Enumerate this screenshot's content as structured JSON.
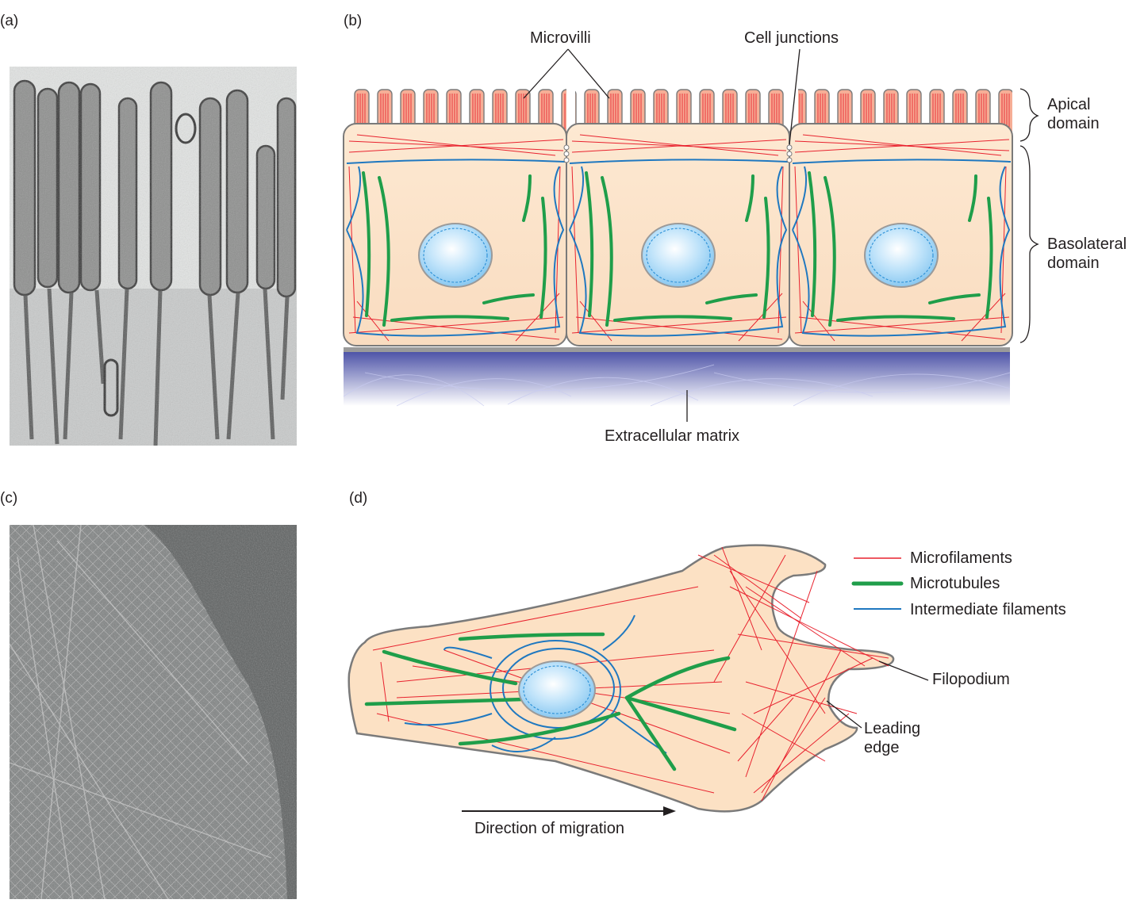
{
  "panels": {
    "a": {
      "letter": "(a)"
    },
    "b": {
      "letter": "(b)",
      "labels": {
        "microvilli": "Microvilli",
        "cell_junctions": "Cell junctions",
        "apical_line1": "Apical",
        "apical_line2": "domain",
        "basolateral_line1": "Basolateral",
        "basolateral_line2": "domain",
        "extracellular_matrix": "Extracellular matrix"
      }
    },
    "c": {
      "letter": "(c)"
    },
    "d": {
      "letter": "(d)",
      "legend": [
        {
          "label": "Microfilaments",
          "color": "#e8222e"
        },
        {
          "label": "Microtubules",
          "color": "#1f9e4a"
        },
        {
          "label": "Intermediate filaments",
          "color": "#1f78c0"
        }
      ],
      "labels": {
        "filopodium": "Filopodium",
        "leading_line1": "Leading",
        "leading_line2": "edge",
        "direction": "Direction of migration"
      }
    }
  },
  "colors": {
    "microfilament": "#e8222e",
    "microtubule": "#1f9e4a",
    "intermediate_filament": "#1f78c0",
    "cytoplasm": "#fbe3c8",
    "microvillus": "#f5a58e",
    "outline": "#7a7a7a",
    "matrix": "#5a5fb0"
  }
}
